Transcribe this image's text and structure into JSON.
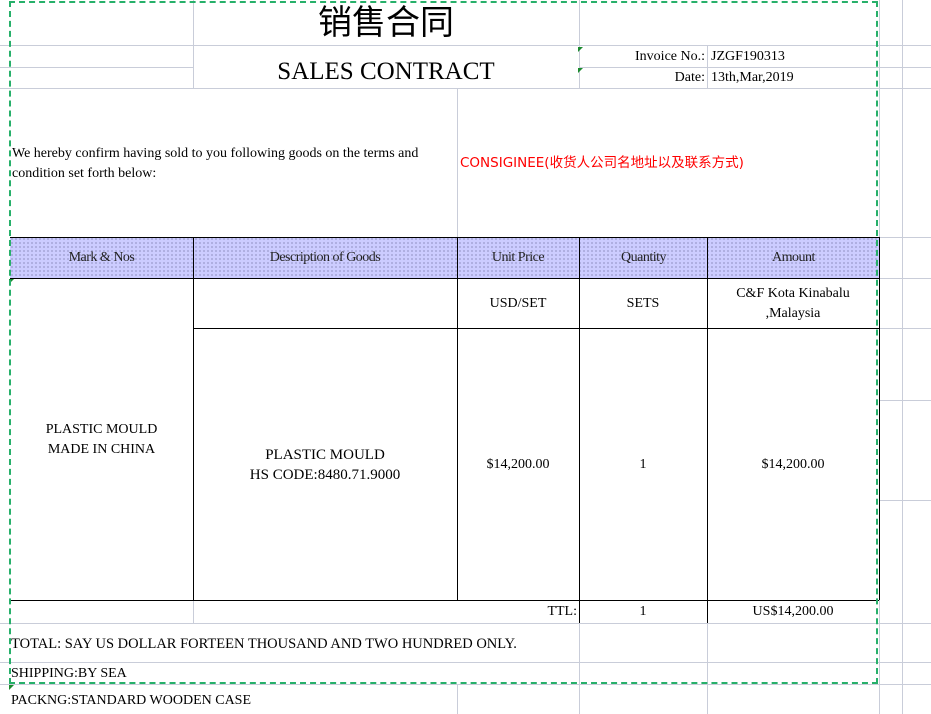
{
  "title_cn": "销售合同",
  "title_en": "SALES CONTRACT",
  "invoice": {
    "label": "Invoice  No.:",
    "value": "JZGF190313"
  },
  "date": {
    "label": "Date:",
    "value": "13th,Mar,2019"
  },
  "intro": "We hereby confirm having sold to you following goods on the terms and condition set forth below:",
  "consignee": "CONSIGINEE(收货人公司名地址以及联系方式)",
  "headers": [
    "Mark & Nos",
    "Description of Goods",
    "Unit Price",
    "Quantity",
    "Amount"
  ],
  "units": {
    "price": "USD/SET",
    "qty": "SETS",
    "amount_line1": "C&F  Kota Kinabalu",
    ",Malaysia": ",Malaysia",
    "amount_line2": ",Malaysia"
  },
  "item": {
    "mark_line1": "PLASTIC MOULD",
    "mark_line2": "MADE IN CHINA",
    "desc_line1": "PLASTIC MOULD",
    "desc_line2": "HS CODE:8480.71.9000",
    "price": "$14,200.00",
    "qty": "1",
    "amount": "$14,200.00"
  },
  "total": {
    "label": "TTL:",
    "qty": "1",
    "amount": "US$14,200.00"
  },
  "total_words": "TOTAL: SAY US DOLLAR FORTEEN  THOUSAND AND TWO HUNDRED  ONLY.",
  "shipping": "SHIPPING:BY SEA",
  "packing": "PACKNG:STANDARD WOODEN CASE",
  "colors": {
    "consignee": "#ff0000",
    "header_bg": "#ccccff",
    "print_area": "#27b06a"
  }
}
